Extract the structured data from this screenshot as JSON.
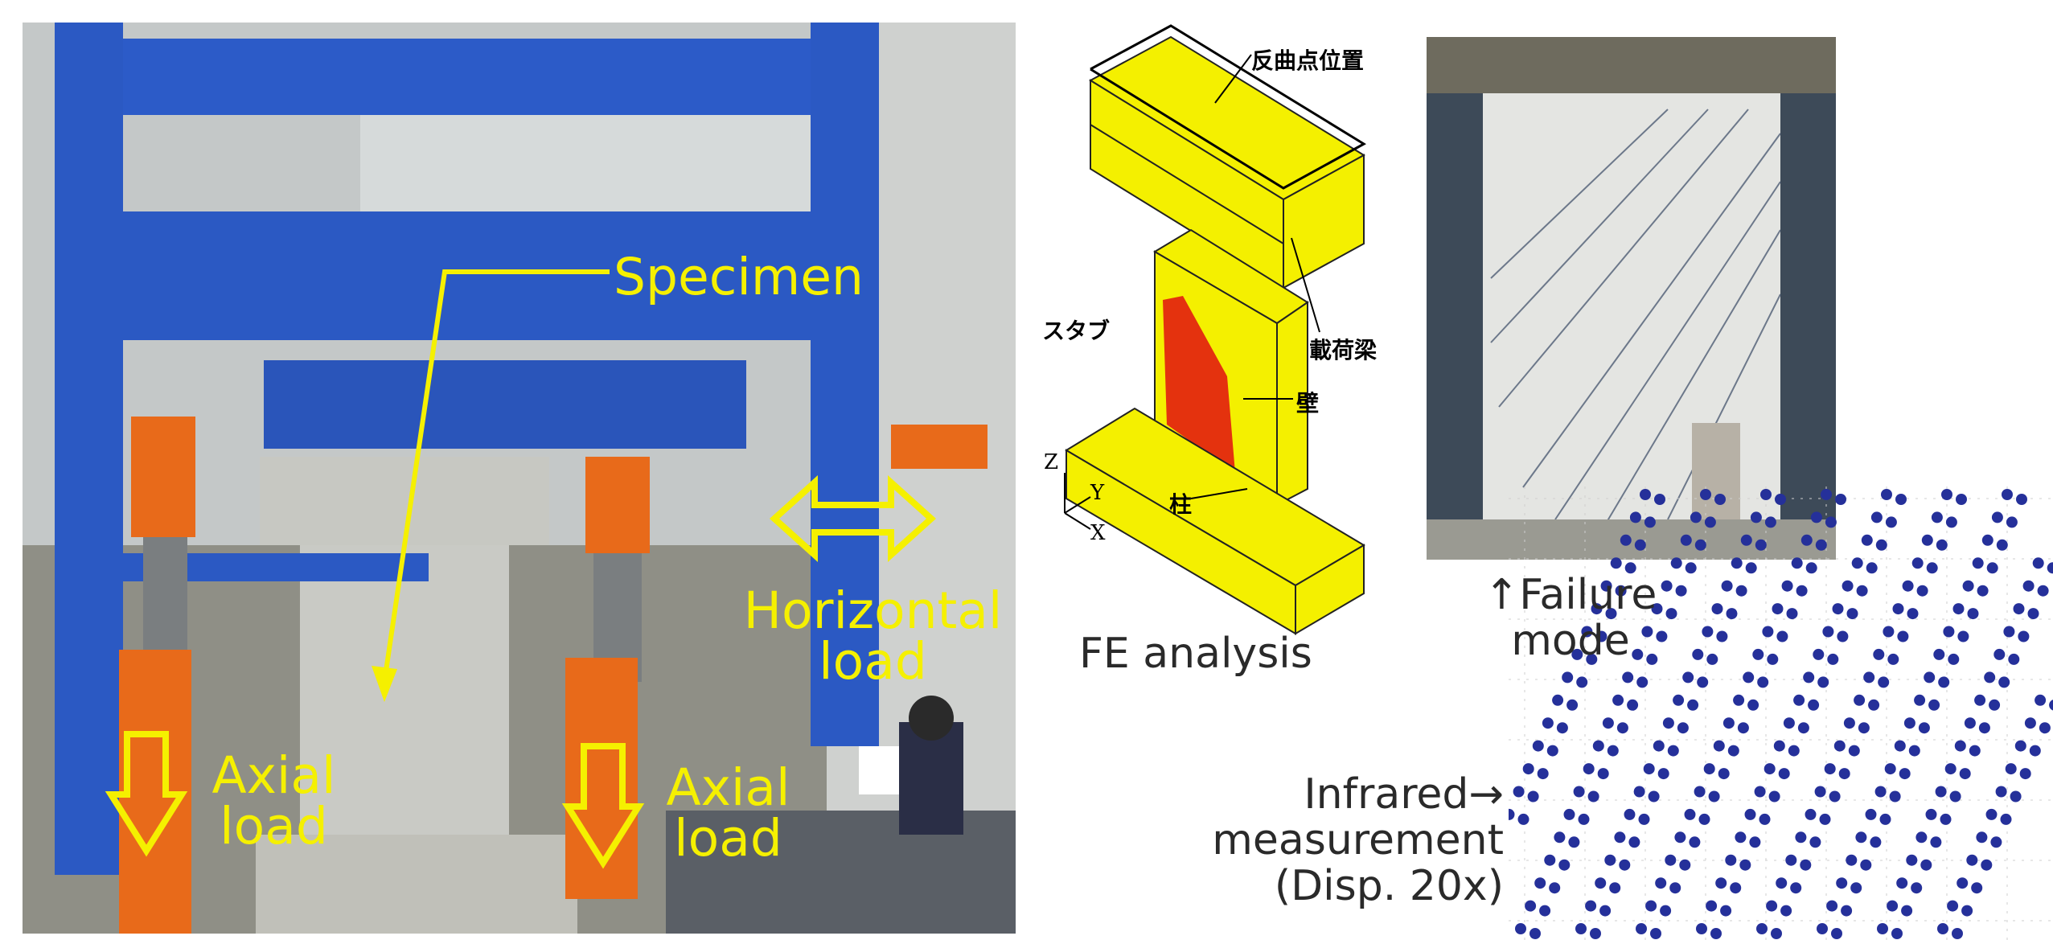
{
  "photo": {
    "labels": {
      "specimen": "Specimen",
      "horizontal_load": "Horizontal\nload",
      "axial_load_left": "Axial\nload",
      "axial_load_right": "Axial\nload"
    },
    "colors": {
      "frame_blue": "#2b59c3",
      "actuator_orange": "#e86a1a",
      "annotation_yellow": "#f5f000"
    }
  },
  "fe_model": {
    "label_inflection": "反曲点位置",
    "label_stub": "スタブ",
    "label_loading_beam": "載荷梁",
    "label_wall": "壁",
    "label_column": "柱",
    "axis_z": "Z",
    "axis_y": "Y",
    "axis_x": "X",
    "colors": {
      "body": "#f4f000",
      "cracks": "#e01010"
    }
  },
  "captions": {
    "fe": "FE analysis",
    "failure": "↑Failure\nmode",
    "infrared": "Infrared→\nmeasurement\n(Disp. 20x)"
  },
  "infrared": {
    "dot_color": "#25309a"
  }
}
